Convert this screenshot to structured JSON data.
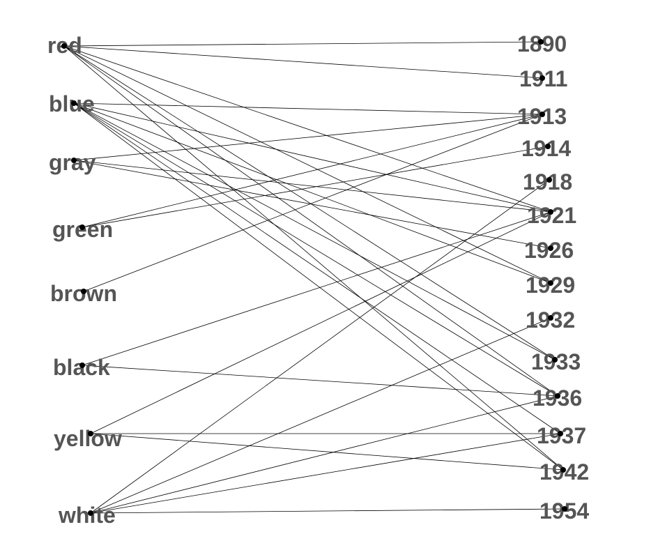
{
  "left_nodes": [
    {
      "id": "red",
      "label": "red"
    },
    {
      "id": "blue",
      "label": "blue"
    },
    {
      "id": "gray",
      "label": "gray"
    },
    {
      "id": "green",
      "label": "green"
    },
    {
      "id": "brown",
      "label": "brown"
    },
    {
      "id": "black",
      "label": "black"
    },
    {
      "id": "yellow",
      "label": "yellow"
    },
    {
      "id": "white",
      "label": "white"
    }
  ],
  "right_nodes": [
    {
      "id": "1890",
      "label": "1890"
    },
    {
      "id": "1911",
      "label": "1911"
    },
    {
      "id": "1913",
      "label": "1913"
    },
    {
      "id": "1914",
      "label": "1914"
    },
    {
      "id": "1918",
      "label": "1918"
    },
    {
      "id": "1921",
      "label": "1921"
    },
    {
      "id": "1926",
      "label": "1926"
    },
    {
      "id": "1929",
      "label": "1929"
    },
    {
      "id": "1932",
      "label": "1932"
    },
    {
      "id": "1933",
      "label": "1933"
    },
    {
      "id": "1936",
      "label": "1936"
    },
    {
      "id": "1937",
      "label": "1937"
    },
    {
      "id": "1942",
      "label": "1942"
    },
    {
      "id": "1954",
      "label": "1954"
    }
  ],
  "edges": [
    [
      "red",
      "1890"
    ],
    [
      "red",
      "1911"
    ],
    [
      "red",
      "1921"
    ],
    [
      "red",
      "1929"
    ],
    [
      "red",
      "1933"
    ],
    [
      "red",
      "1936"
    ],
    [
      "red",
      "1942"
    ],
    [
      "blue",
      "1913"
    ],
    [
      "blue",
      "1921"
    ],
    [
      "blue",
      "1929"
    ],
    [
      "blue",
      "1933"
    ],
    [
      "blue",
      "1936"
    ],
    [
      "blue",
      "1937"
    ],
    [
      "blue",
      "1942"
    ],
    [
      "gray",
      "1913"
    ],
    [
      "gray",
      "1921"
    ],
    [
      "gray",
      "1926"
    ],
    [
      "green",
      "1913"
    ],
    [
      "green",
      "1914"
    ],
    [
      "brown",
      "1913"
    ],
    [
      "black",
      "1921"
    ],
    [
      "black",
      "1936"
    ],
    [
      "yellow",
      "1921"
    ],
    [
      "yellow",
      "1937"
    ],
    [
      "yellow",
      "1942"
    ],
    [
      "white",
      "1918"
    ],
    [
      "white",
      "1932"
    ],
    [
      "white",
      "1936"
    ],
    [
      "white",
      "1937"
    ],
    [
      "white",
      "1954"
    ]
  ]
}
